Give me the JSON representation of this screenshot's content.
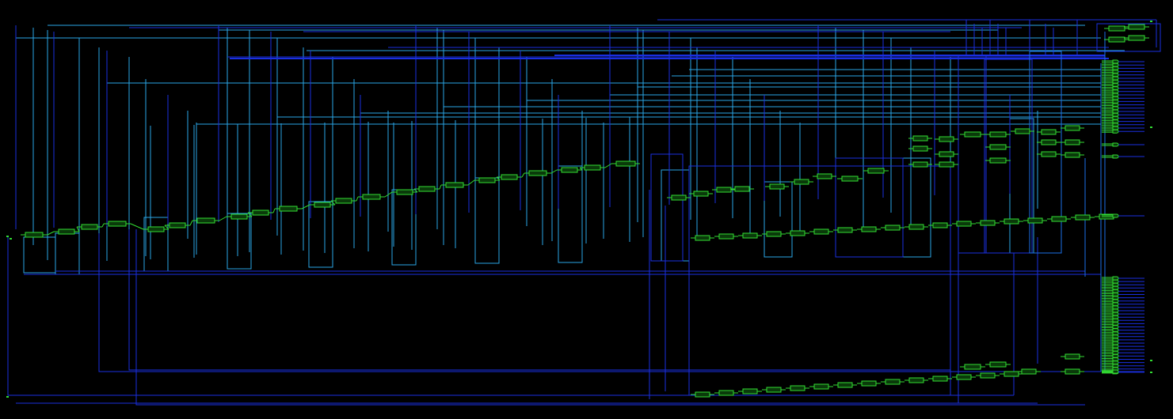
{
  "view": {
    "background": "#000000",
    "net_colors": {
      "primary": "#2aa6e6",
      "secondary": "#1a2fe0",
      "tertiary": "#1c6fe8"
    },
    "cell_color": "#33dd33",
    "labels_visible": false
  }
}
